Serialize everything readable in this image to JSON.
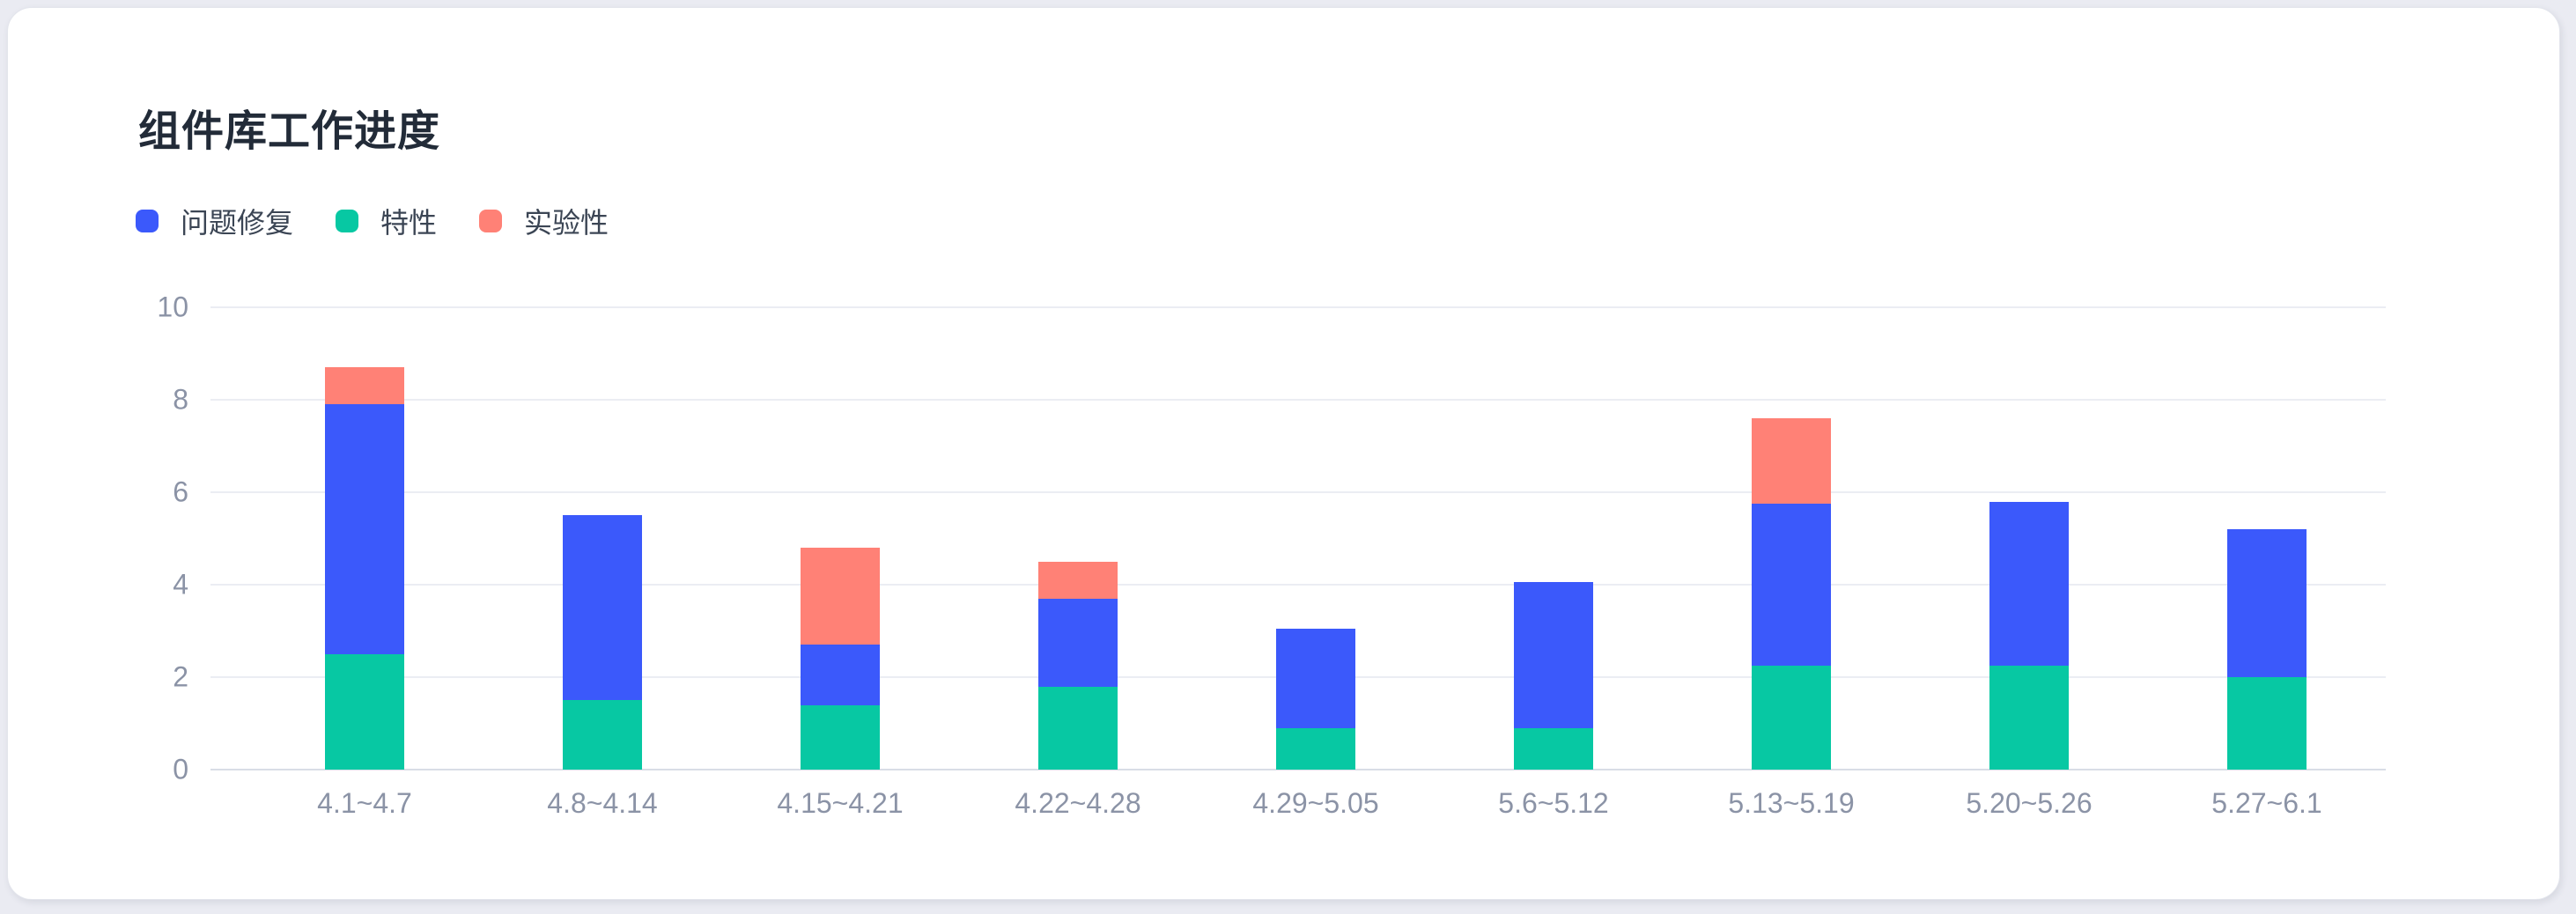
{
  "chart_data": {
    "type": "bar",
    "stacked": true,
    "title": "组件库工作进度",
    "categories": [
      "4.1~4.7",
      "4.8~4.14",
      "4.15~4.21",
      "4.22~4.28",
      "4.29~5.05",
      "5.6~5.12",
      "5.13~5.19",
      "5.20~5.26",
      "5.27~6.1"
    ],
    "series": [
      {
        "name": "问题修复",
        "color": "#3B59FB",
        "values": [
          5.4,
          4.0,
          1.3,
          1.9,
          2.15,
          3.15,
          3.5,
          3.55,
          3.2
        ]
      },
      {
        "name": "特性",
        "color": "#07C8A3",
        "values": [
          2.5,
          1.5,
          1.4,
          1.8,
          0.9,
          0.9,
          2.25,
          2.25,
          2.0
        ]
      },
      {
        "name": "实验性",
        "color": "#FF8176",
        "values": [
          0.8,
          0,
          2.1,
          0.8,
          0,
          0,
          1.85,
          0,
          0
        ]
      }
    ],
    "stack_totals": [
      8.7,
      5.5,
      4.8,
      4.5,
      3.05,
      4.05,
      7.6,
      5.8,
      5.2
    ],
    "stack_order_bottom_to_top": [
      "特性",
      "问题修复",
      "实验性"
    ],
    "ylim": [
      0,
      10
    ],
    "yticks": [
      0,
      2,
      4,
      6,
      8,
      10
    ],
    "xlabel": "",
    "ylabel": "",
    "grid": true,
    "legend_position": "top-left"
  },
  "colors": {
    "title_text": "#222B38",
    "legend_text": "#3B4554",
    "axis_text": "#8B93A6",
    "gridline": "#EBEDF3",
    "axis_line": "#D9DDE6",
    "card_background": "#FFFFFF",
    "page_background": "#EAEBF2"
  }
}
